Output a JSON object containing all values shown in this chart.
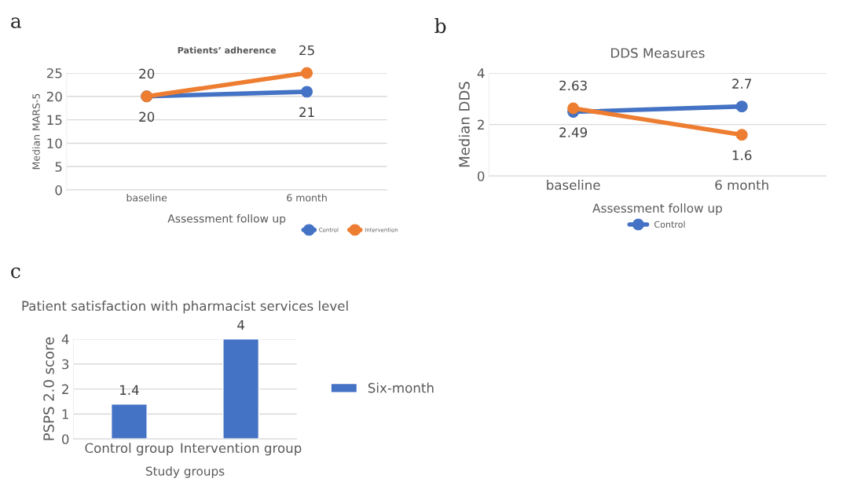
{
  "chart_data": [
    {
      "type": "line",
      "title": "Patients’ adherence",
      "xlabel": "Assessment follow up",
      "ylabel": "Median MARS-5",
      "annotations": [
        "a"
      ],
      "categories": [
        "baseline",
        "6 month"
      ],
      "series": [
        {
          "name": "Control",
          "color": "#4472c4",
          "values": [
            20,
            21
          ]
        },
        {
          "name": "Intervention",
          "color": "#ed7d31",
          "values": [
            20,
            25
          ]
        }
      ],
      "ylim": [
        0,
        25
      ],
      "yticks": [
        0,
        5,
        10,
        15,
        20,
        25
      ],
      "grid": "y",
      "legend": "bottom right",
      "marker": "circle",
      "data_labels": true
    },
    {
      "type": "line",
      "title": "DDS Measures",
      "xlabel": "Assessment follow up",
      "ylabel": "Median DDS",
      "annotations": [
        "b"
      ],
      "categories": [
        "baseline",
        "6 month"
      ],
      "series": [
        {
          "name": "Control",
          "color": "#4472c4",
          "values": [
            2.49,
            2.7
          ]
        },
        {
          "color": "#ed7d31",
          "values": [
            2.63,
            1.6
          ]
        }
      ],
      "ylim": [
        0,
        4
      ],
      "yticks": [
        0,
        2,
        4
      ],
      "grid": "y",
      "legend": "bottom",
      "marker": "circle",
      "data_labels": true
    },
    {
      "type": "bar",
      "title": "Patient satisfaction with pharmacist services level",
      "xlabel": "Study groups",
      "ylabel": "PSPS 2.0 score",
      "annotations": [
        "c"
      ],
      "categories": [
        "Control group",
        "Intervention group"
      ],
      "series": [
        {
          "name": "Six-month",
          "color": "#4472c4",
          "values": [
            1.4,
            4
          ]
        }
      ],
      "ylim": [
        0,
        4
      ],
      "yticks": [
        0,
        1,
        2,
        3,
        4
      ],
      "grid": "y",
      "legend": "right",
      "data_labels": true
    }
  ]
}
